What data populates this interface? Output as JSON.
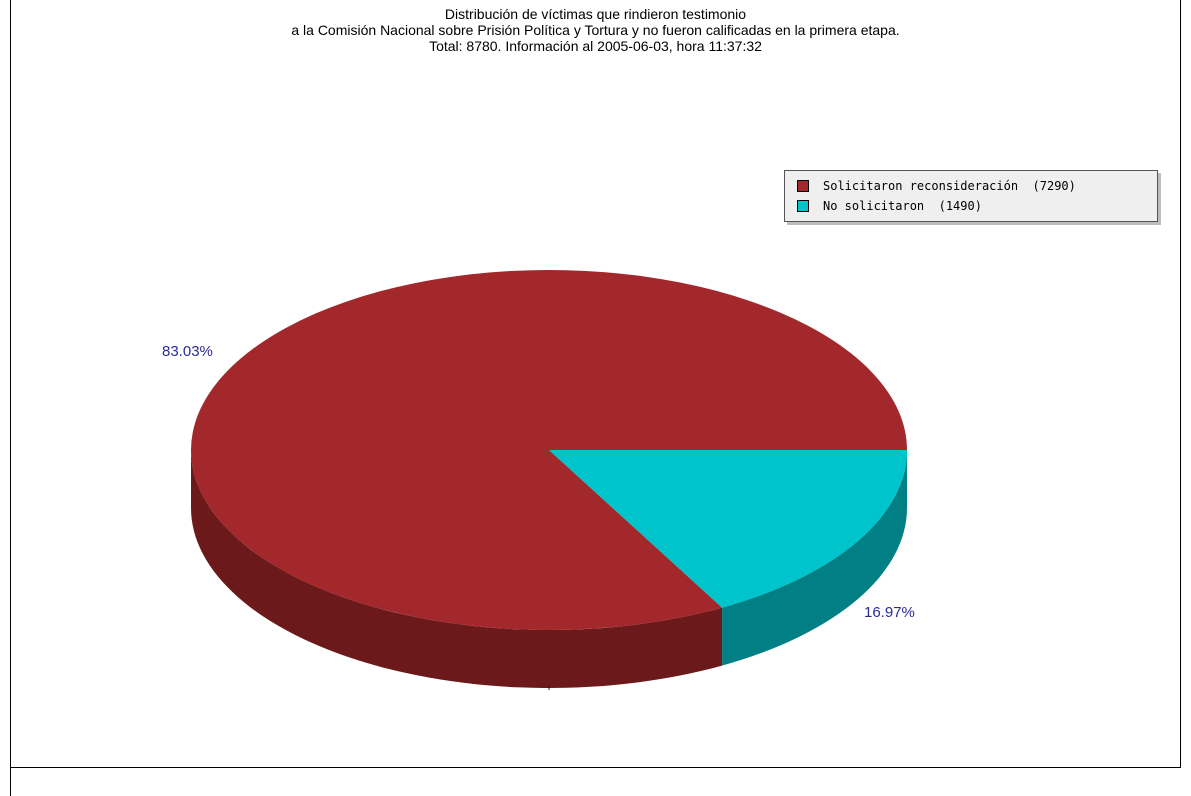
{
  "chart_data": {
    "type": "pie",
    "title_lines": [
      "Distribución de víctimas que rindieron testimonio",
      "a la Comisión Nacional sobre Prisión Política y Tortura y no fueron calificadas en la primera etapa.",
      "Total: 8780. Información al 2005-06-03, hora 11:37:32"
    ],
    "slices": [
      {
        "label": "Solicitaron reconsideración",
        "value": 7290,
        "legend_text": "Solicitaron reconsideración  (7290)",
        "percent_label": "83.03%",
        "color": "#a3282b",
        "side_color": "#6b191b"
      },
      {
        "label": "No solicitaron",
        "value": 1490,
        "legend_text": "No solicitaron  (1490)",
        "percent_label": "16.97%",
        "color": "#00c4cc",
        "side_color": "#007f85"
      }
    ],
    "legend_position": "top-right"
  }
}
